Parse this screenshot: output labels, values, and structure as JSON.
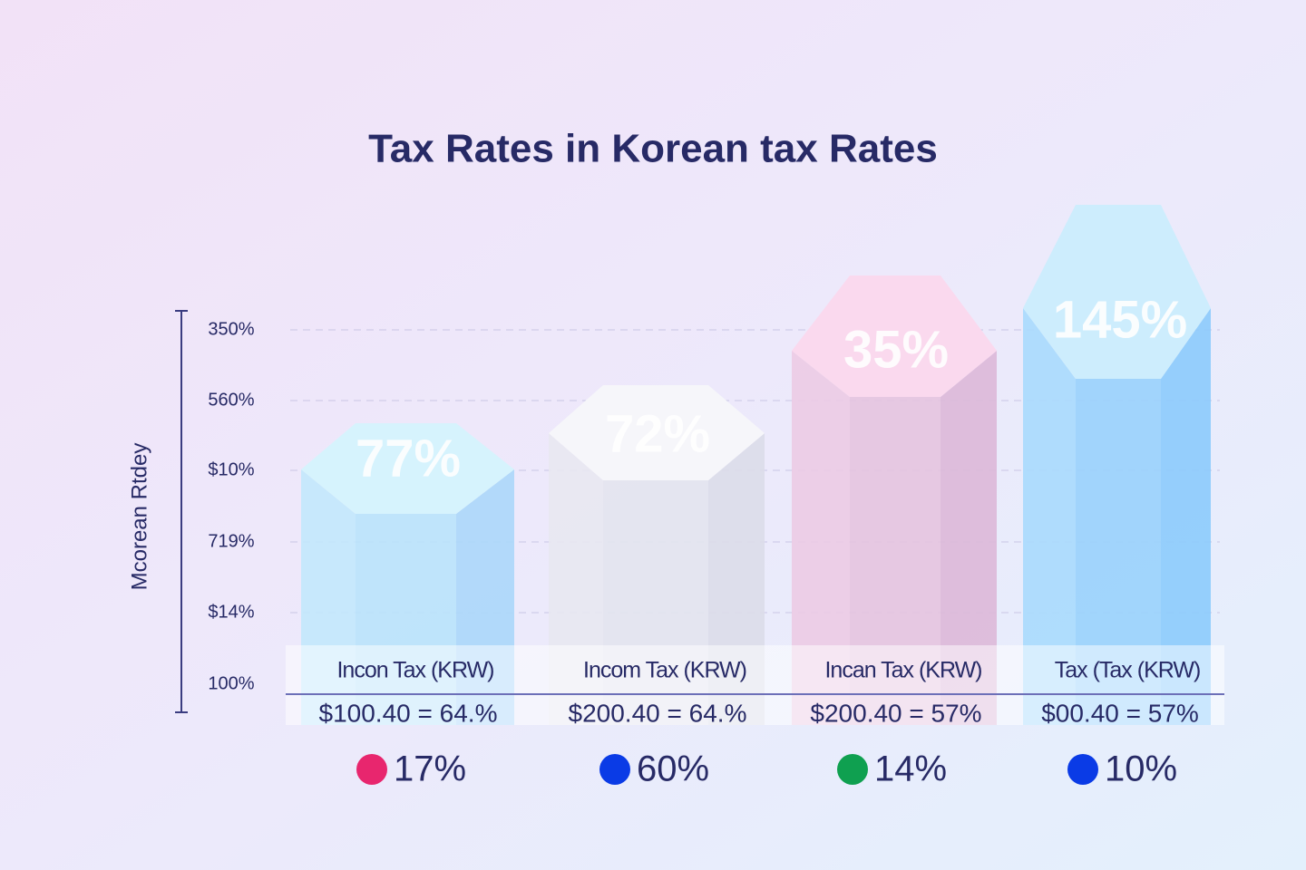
{
  "title": "Tax Rates in Korean tax Rates",
  "axis_label": "Mcorean Rtdey",
  "ticks": [
    "350%",
    "560%",
    "$10%",
    "719%",
    "$14%",
    "100%"
  ],
  "columns": [
    {
      "label": "77%",
      "caption": "Incon Tax (KRW)",
      "value": "$100.40 = 64.%",
      "legend": "17%",
      "dot_color": "#e8266e"
    },
    {
      "label": "72%",
      "caption": "Incom Tax (KRW)",
      "value": "$200.40 = 64.%",
      "legend": "60%",
      "dot_color": "#0a3be6"
    },
    {
      "label": "35%",
      "caption": "Incan Tax (KRW)",
      "value": "$200.40 = 57%",
      "legend": "14%",
      "dot_color": "#0fa050"
    },
    {
      "label": "145%",
      "caption": "Tax (Tax (KRW)",
      "value": "$00.40 = 57%",
      "legend": "10%",
      "dot_color": "#0a3be6"
    }
  ]
}
